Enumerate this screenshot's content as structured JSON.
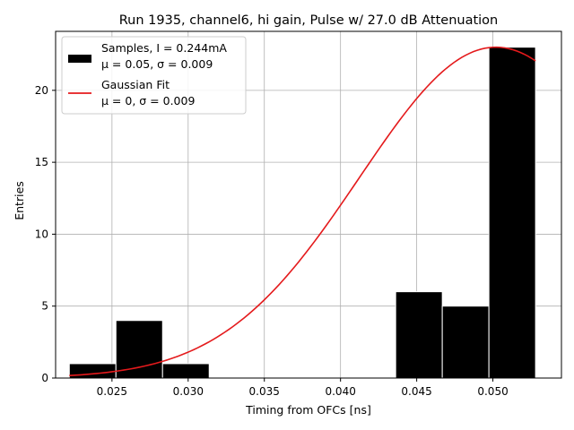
{
  "chart_data": {
    "type": "bar",
    "title": "Run 1935, channel6, hi gain, Pulse w/ 27.0 dB Attenuation",
    "xlabel": "Timing from OFCs [ns]",
    "ylabel": "Entries",
    "xlim": [
      0.0213,
      0.0545
    ],
    "ylim": [
      0,
      24.1
    ],
    "xticks": [
      0.025,
      0.03,
      0.035,
      0.04,
      0.045,
      0.05
    ],
    "xtick_labels": [
      "0.025",
      "0.030",
      "0.035",
      "0.040",
      "0.045",
      "0.050"
    ],
    "yticks": [
      0,
      5,
      10,
      15,
      20
    ],
    "ytick_labels": [
      "0",
      "5",
      "10",
      "15",
      "20"
    ],
    "grid": true,
    "legend_position": "top-left",
    "histogram": {
      "name": "Samples, I = 0.244mA",
      "name_line2": "μ = 0.05, σ = 0.009",
      "color": "#000000",
      "edge_color": "#ffffff",
      "bins": [
        {
          "x0": 0.0222,
          "x1": 0.02526,
          "count": 1
        },
        {
          "x0": 0.02526,
          "x1": 0.02832,
          "count": 4
        },
        {
          "x0": 0.02832,
          "x1": 0.03138,
          "count": 1
        },
        {
          "x0": 0.03138,
          "x1": 0.03444,
          "count": 0
        },
        {
          "x0": 0.03444,
          "x1": 0.0375,
          "count": 0
        },
        {
          "x0": 0.0375,
          "x1": 0.04056,
          "count": 0
        },
        {
          "x0": 0.04056,
          "x1": 0.04362,
          "count": 0
        },
        {
          "x0": 0.04362,
          "x1": 0.04668,
          "count": 6
        },
        {
          "x0": 0.04668,
          "x1": 0.04974,
          "count": 5
        },
        {
          "x0": 0.04974,
          "x1": 0.0528,
          "count": 23
        }
      ]
    },
    "fit": {
      "name": "Gaussian Fit",
      "name_line2": "μ = 0, σ = 0.009",
      "color": "#e41a1c",
      "x_range": [
        0.0222,
        0.0528
      ],
      "mean": 0.0502,
      "sigma": 0.00895,
      "amplitude": 23.0
    }
  }
}
